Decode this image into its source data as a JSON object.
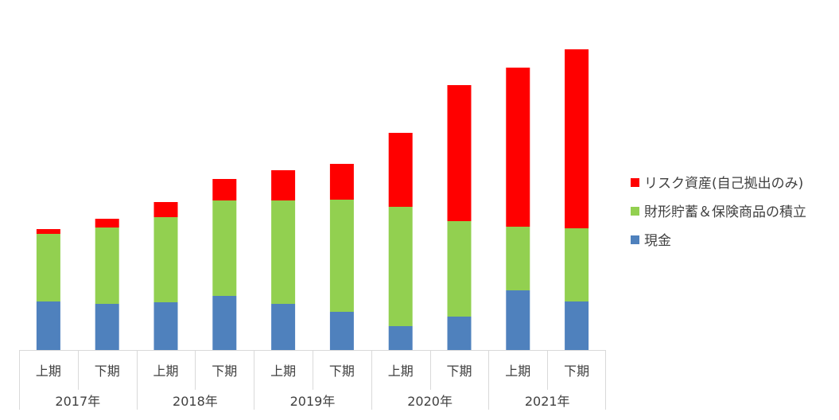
{
  "chart_data": {
    "type": "bar",
    "stacked": true,
    "title": "",
    "xlabel": "",
    "ylabel": "",
    "categories": [
      {
        "year": "2017年",
        "half": "上期"
      },
      {
        "year": "2017年",
        "half": "下期"
      },
      {
        "year": "2018年",
        "half": "上期"
      },
      {
        "year": "2018年",
        "half": "下期"
      },
      {
        "year": "2019年",
        "half": "上期"
      },
      {
        "year": "2019年",
        "half": "下期"
      },
      {
        "year": "2020年",
        "half": "上期"
      },
      {
        "year": "2020年",
        "half": "下期"
      },
      {
        "year": "2021年",
        "half": "上期"
      },
      {
        "year": "2021年",
        "half": "下期"
      }
    ],
    "series": [
      {
        "name": "現金",
        "color": "#4f81bd",
        "values": [
          61,
          58,
          60,
          68,
          58,
          48,
          30,
          42,
          75,
          61
        ]
      },
      {
        "name": "財形貯蓄＆保険商品の積立",
        "color": "#92d050",
        "values": [
          85,
          96,
          107,
          120,
          130,
          141,
          150,
          120,
          80,
          92
        ]
      },
      {
        "name": "リスク資産(自己拠出のみ)",
        "color": "#ff0000",
        "values": [
          6,
          11,
          19,
          27,
          38,
          45,
          93,
          171,
          200,
          225
        ]
      }
    ],
    "ylim": [
      0,
      400
    ],
    "grid": false,
    "legend_position": "right"
  }
}
